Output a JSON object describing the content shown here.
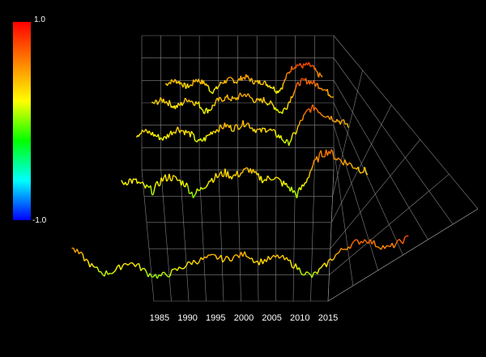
{
  "chart_data": {
    "type": "line",
    "view": "3d-perspective",
    "x_ticks": [
      "1985",
      "1990",
      "1995",
      "2000",
      "2005",
      "2010",
      "2015"
    ],
    "xlim": [
      1983,
      2016
    ],
    "colorbar": {
      "max_label": "1.0",
      "min_label": "-1.0",
      "range": [
        -1.0,
        1.0
      ],
      "colormap": [
        "#ff0000",
        "#ff8000",
        "#ffff00",
        "#00ff00",
        "#00ffff",
        "#0000ff"
      ]
    },
    "series": [
      {
        "x": [
          1984,
          1985,
          1986,
          1987,
          1988,
          1989,
          1990,
          1991,
          1992,
          1993,
          1994,
          1995,
          1996,
          1997,
          1998,
          1999,
          2000,
          2001,
          2002,
          2003,
          2004,
          2005,
          2006,
          2007,
          2008,
          2009,
          2010,
          2011,
          2012,
          2013,
          2014,
          2015
        ],
        "values": [
          0.35,
          0.4,
          0.42,
          0.38,
          0.3,
          0.32,
          0.45,
          0.4,
          0.35,
          0.2,
          0.25,
          0.38,
          0.42,
          0.45,
          0.4,
          0.48,
          0.5,
          0.42,
          0.38,
          0.4,
          0.35,
          0.3,
          0.2,
          0.3,
          0.55,
          0.7,
          0.75,
          0.72,
          0.75,
          0.7,
          0.55,
          0.5
        ]
      },
      {
        "x": [
          1984,
          1985,
          1986,
          1987,
          1988,
          1989,
          1990,
          1991,
          1992,
          1993,
          1994,
          1995,
          1996,
          1997,
          1998,
          1999,
          2000,
          2001,
          2002,
          2003,
          2004,
          2005,
          2006,
          2007,
          2008,
          2009,
          2010,
          2011,
          2012,
          2013,
          2014,
          2015
        ],
        "values": [
          0.3,
          0.35,
          0.38,
          0.32,
          0.25,
          0.3,
          0.4,
          0.35,
          0.3,
          0.18,
          0.22,
          0.35,
          0.4,
          0.42,
          0.38,
          0.45,
          0.48,
          0.4,
          0.35,
          0.38,
          0.32,
          0.25,
          0.15,
          0.28,
          0.5,
          0.68,
          0.72,
          0.7,
          0.65,
          0.6,
          0.5,
          0.45
        ]
      },
      {
        "x": [
          1984,
          1985,
          1986,
          1987,
          1988,
          1989,
          1990,
          1991,
          1992,
          1993,
          1994,
          1995,
          1996,
          1997,
          1998,
          1999,
          2000,
          2001,
          2002,
          2003,
          2004,
          2005,
          2006,
          2007,
          2008,
          2009,
          2010,
          2011,
          2012,
          2013,
          2014,
          2015
        ],
        "values": [
          0.25,
          0.3,
          0.28,
          0.22,
          0.18,
          0.28,
          0.35,
          0.3,
          0.25,
          0.12,
          0.18,
          0.3,
          0.35,
          0.4,
          0.35,
          0.4,
          0.45,
          0.35,
          0.3,
          0.35,
          0.28,
          0.2,
          0.1,
          0.25,
          0.48,
          0.65,
          0.7,
          0.6,
          0.55,
          0.5,
          0.45,
          0.4
        ]
      },
      {
        "x": [
          1984,
          1985,
          1986,
          1987,
          1988,
          1989,
          1990,
          1991,
          1992,
          1993,
          1994,
          1995,
          1996,
          1997,
          1998,
          1999,
          2000,
          2001,
          2002,
          2003,
          2004,
          2005,
          2006,
          2007,
          2008,
          2009,
          2010,
          2011,
          2012,
          2013,
          2014,
          2015
        ],
        "values": [
          0.2,
          0.25,
          0.22,
          0.15,
          0.1,
          0.25,
          0.3,
          0.25,
          0.2,
          0.05,
          0.12,
          0.25,
          0.3,
          0.35,
          0.3,
          0.35,
          0.4,
          0.3,
          0.25,
          0.3,
          0.22,
          0.15,
          0.05,
          0.2,
          0.45,
          0.6,
          0.65,
          0.55,
          0.5,
          0.45,
          0.4,
          0.35
        ]
      },
      {
        "x": [
          1984,
          1985,
          1986,
          1987,
          1988,
          1989,
          1990,
          1991,
          1992,
          1993,
          1994,
          1995,
          1996,
          1997,
          1998,
          1999,
          2000,
          2001,
          2002,
          2003,
          2004,
          2005,
          2006,
          2007,
          2008,
          2009,
          2010,
          2011,
          2012,
          2013,
          2014,
          2015
        ],
        "values": [
          0.55,
          0.4,
          0.2,
          0.1,
          0.15,
          0.3,
          0.25,
          0.1,
          0.05,
          0.1,
          0.2,
          0.3,
          0.35,
          0.4,
          0.35,
          0.4,
          0.45,
          0.3,
          0.35,
          0.4,
          0.3,
          0.15,
          0.05,
          0.2,
          0.4,
          0.55,
          0.65,
          0.7,
          0.6,
          0.55,
          0.65,
          0.75
        ]
      }
    ]
  }
}
